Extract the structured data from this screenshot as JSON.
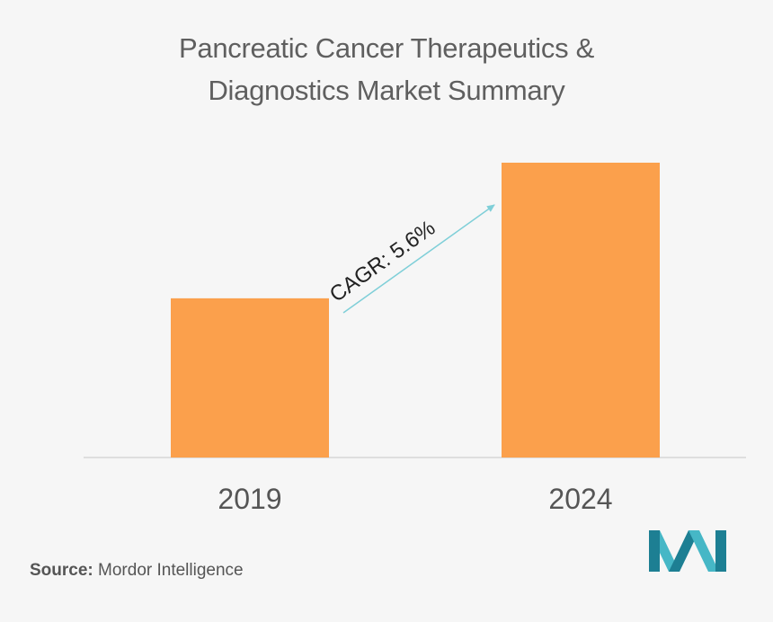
{
  "title_lines": [
    "Pancreatic Cancer Therapeutics &",
    "Diagnostics Market Summary"
  ],
  "source": {
    "label": "Source:",
    "text": "Mordor Intelligence"
  },
  "colors": {
    "bar": "#fba04c",
    "arrow": "#7fcfd8",
    "axis": "#d6d6d6",
    "background": "#f6f6f6",
    "logo_teal": "#46b7c6",
    "logo_dark": "#1d7f93"
  },
  "icons": {
    "logo": "mordor-intelligence-logo-icon"
  },
  "chart_data": {
    "type": "bar",
    "categories": [
      "2019",
      "2024"
    ],
    "values": [
      0.54,
      1.0
    ],
    "value_note_unit": "relative bar height (no y-axis shown)",
    "annotation": {
      "text": "CAGR: 5.6%",
      "from_category": "2019",
      "to_category": "2024"
    },
    "title": "Pancreatic Cancer Therapeutics & Diagnostics Market Summary",
    "xlabel": "",
    "ylabel": "",
    "ylim": [
      0,
      1.0
    ],
    "grid": false,
    "legend": "none"
  }
}
